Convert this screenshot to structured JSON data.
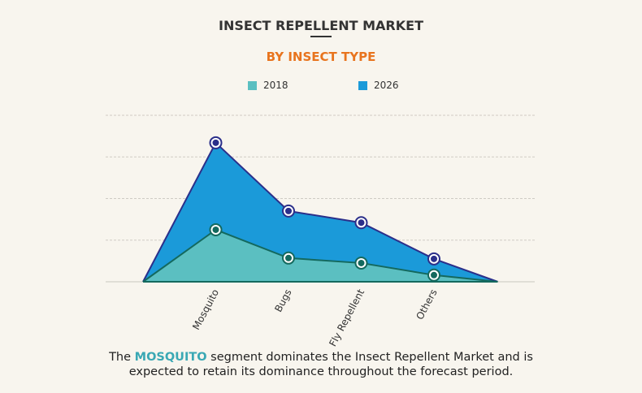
{
  "chart_data": {
    "type": "area",
    "title": "INSECT REPELLENT MARKET",
    "subtitle": "BY INSECT TYPE",
    "categories": [
      "Mosquito",
      "Bugs",
      "Fly Repellent",
      "Others"
    ],
    "series": [
      {
        "name": "2018",
        "values": [
          1.25,
          0.57,
          0.45,
          0.16
        ],
        "color": "#5bbfc1",
        "line_color": "#14695e"
      },
      {
        "name": "2026",
        "values": [
          3.34,
          1.7,
          1.42,
          0.55
        ],
        "color": "#1b9ad9",
        "line_color": "#2b2f8a"
      }
    ],
    "ylim": [
      0,
      4
    ],
    "y_tick_labels_shown": false,
    "grid": true,
    "legend_position": "top-center",
    "xlabel": "",
    "ylabel": ""
  },
  "caption": {
    "prefix": "The ",
    "highlight": "MOSQUITO",
    "line1_rest": " segment dominates the Insect Repellent Market and is",
    "line2": "expected to retain its dominance throughout the forecast period."
  },
  "colors": {
    "title": "#333333",
    "subtitle": "#e8741e",
    "highlight": "#3aa8b4",
    "background": "#f8f5ee"
  }
}
